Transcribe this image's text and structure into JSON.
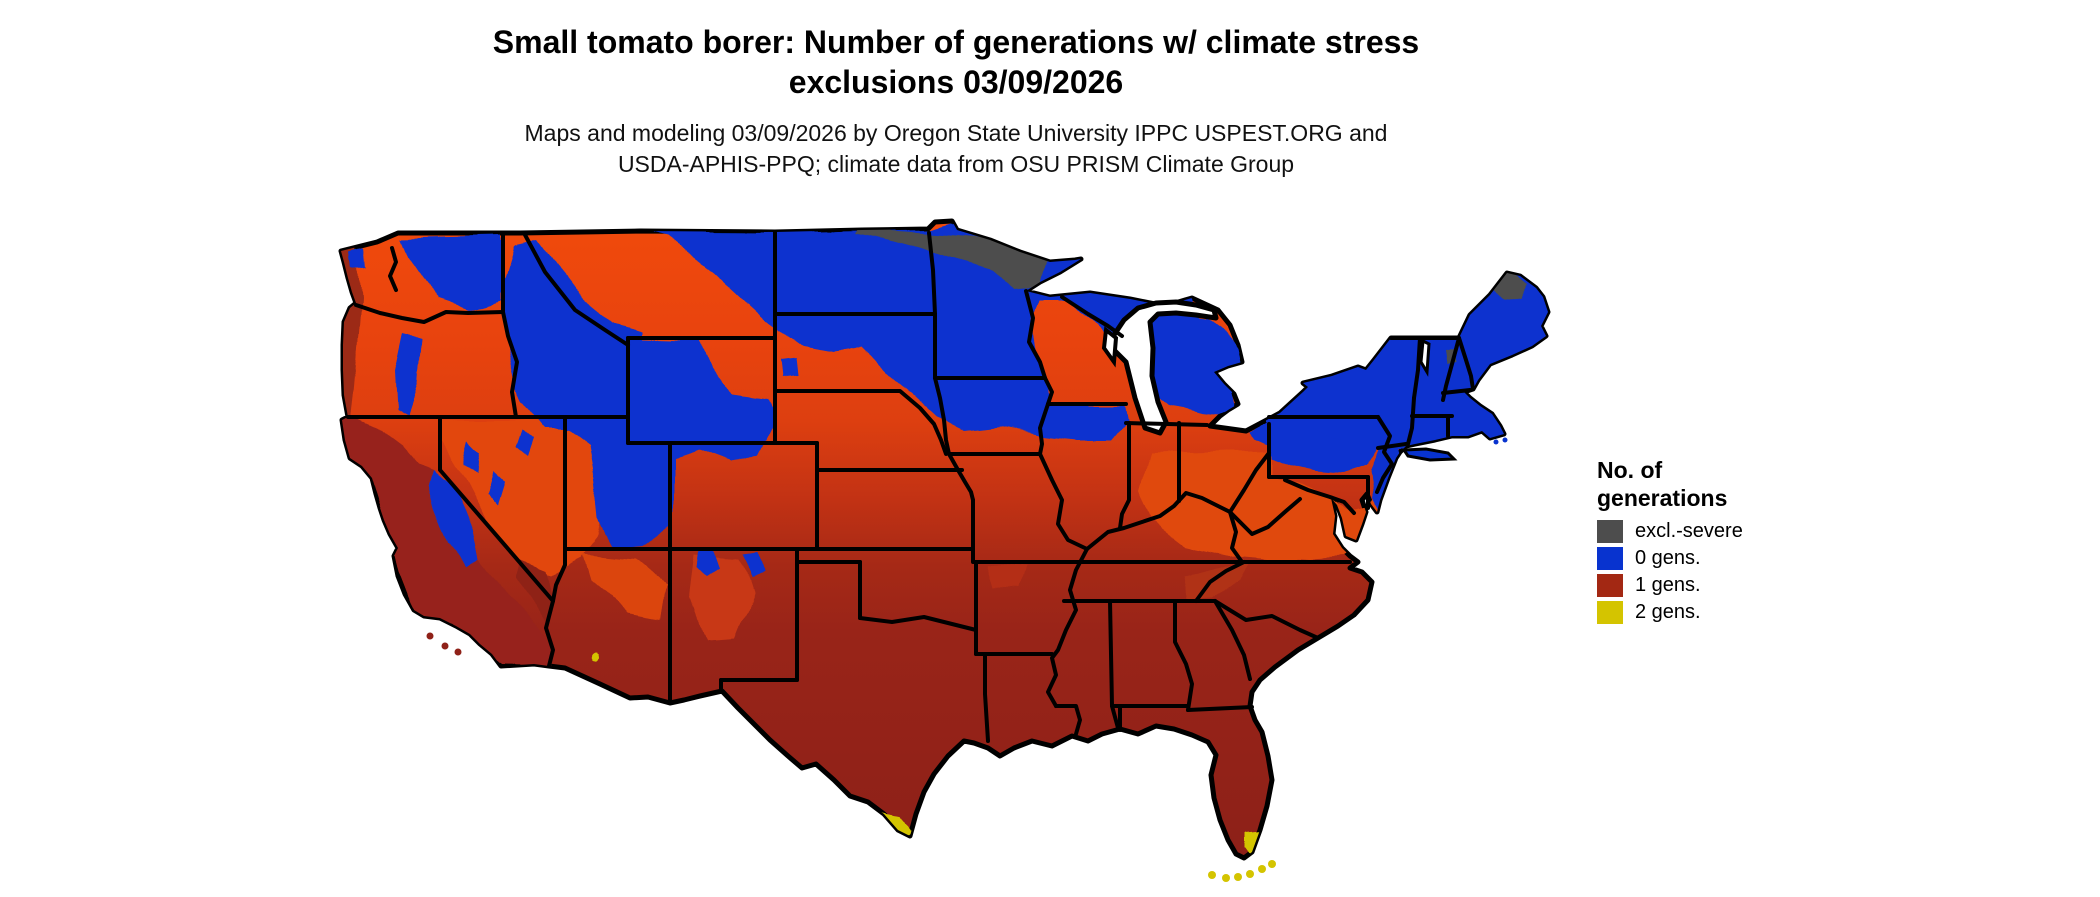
{
  "title": {
    "line1": "Small tomato borer: Number of generations w/ climate stress",
    "line2": "exclusions 03/09/2026"
  },
  "subtitle": {
    "line1": "Maps and modeling 03/09/2026 by Oregon State University IPPC USPEST.ORG and",
    "line2": "USDA-APHIS-PPQ; climate data from OSU PRISM Climate Group"
  },
  "legend": {
    "title_line1": "No. of",
    "title_line2": "generations",
    "items": [
      {
        "label": "excl.-severe",
        "color": "#4d4d4d"
      },
      {
        "label": "0 gens.",
        "color": "#0833cf"
      },
      {
        "label": "1 gens.",
        "color": "#a32813"
      },
      {
        "label": "2 gens.",
        "color": "#d4c400"
      }
    ]
  },
  "map": {
    "region": "Contiguous United States",
    "kind": "raster map of modeled insect generations with climate stress exclusions",
    "colors": {
      "excluded_severe": "#4d4d4d",
      "zero_generations": "#0833cf",
      "one_generation": "#9c2318",
      "two_generations": "#d4c400",
      "gradient_north_orange": "#f04a0c",
      "gradient_south_dark_red": "#8c2018",
      "water_background": "#ffffff",
      "state_border": "#000000"
    }
  }
}
